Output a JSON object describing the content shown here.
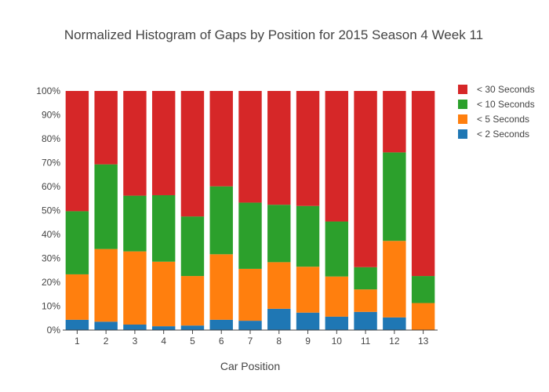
{
  "chart_data": {
    "type": "bar",
    "stacked": true,
    "title": "Normalized Histogram of Gaps by Position for 2015 Season 4 Week 11",
    "xlabel": "Car Position",
    "ylabel": "",
    "ylim": [
      0,
      100
    ],
    "y_ticks": [
      "0%",
      "10%",
      "20%",
      "30%",
      "40%",
      "50%",
      "60%",
      "70%",
      "80%",
      "90%",
      "100%"
    ],
    "categories": [
      "1",
      "2",
      "3",
      "4",
      "5",
      "6",
      "7",
      "8",
      "9",
      "10",
      "11",
      "12",
      "13"
    ],
    "series": [
      {
        "name": "< 2  Seconds",
        "color": "#1f77b4",
        "values": [
          4.3,
          3.5,
          2.3,
          1.6,
          1.9,
          4.3,
          3.9,
          8.9,
          7.3,
          5.6,
          7.6,
          5.3,
          0
        ]
      },
      {
        "name": "< 5  Seconds",
        "color": "#ff7f0e",
        "values": [
          19.0,
          30.4,
          30.6,
          27.0,
          20.7,
          27.4,
          21.7,
          19.5,
          19.2,
          16.8,
          9.4,
          32.0,
          11.3
        ]
      },
      {
        "name": "< 10 Seconds",
        "color": "#2ca02c",
        "values": [
          26.4,
          35.4,
          23.3,
          27.8,
          24.9,
          28.4,
          27.7,
          24.0,
          25.4,
          23.0,
          9.3,
          37.0,
          11.3
        ]
      },
      {
        "name": "< 30 Seconds",
        "color": "#d62728",
        "values": [
          50.3,
          30.7,
          43.8,
          43.6,
          52.5,
          39.9,
          46.7,
          47.6,
          48.1,
          54.6,
          73.7,
          25.7,
          77.4
        ]
      }
    ],
    "legend_order": [
      "< 30 Seconds",
      "< 10 Seconds",
      "< 5  Seconds",
      "< 2  Seconds"
    ],
    "legend_position": "top-right",
    "grid": false
  }
}
